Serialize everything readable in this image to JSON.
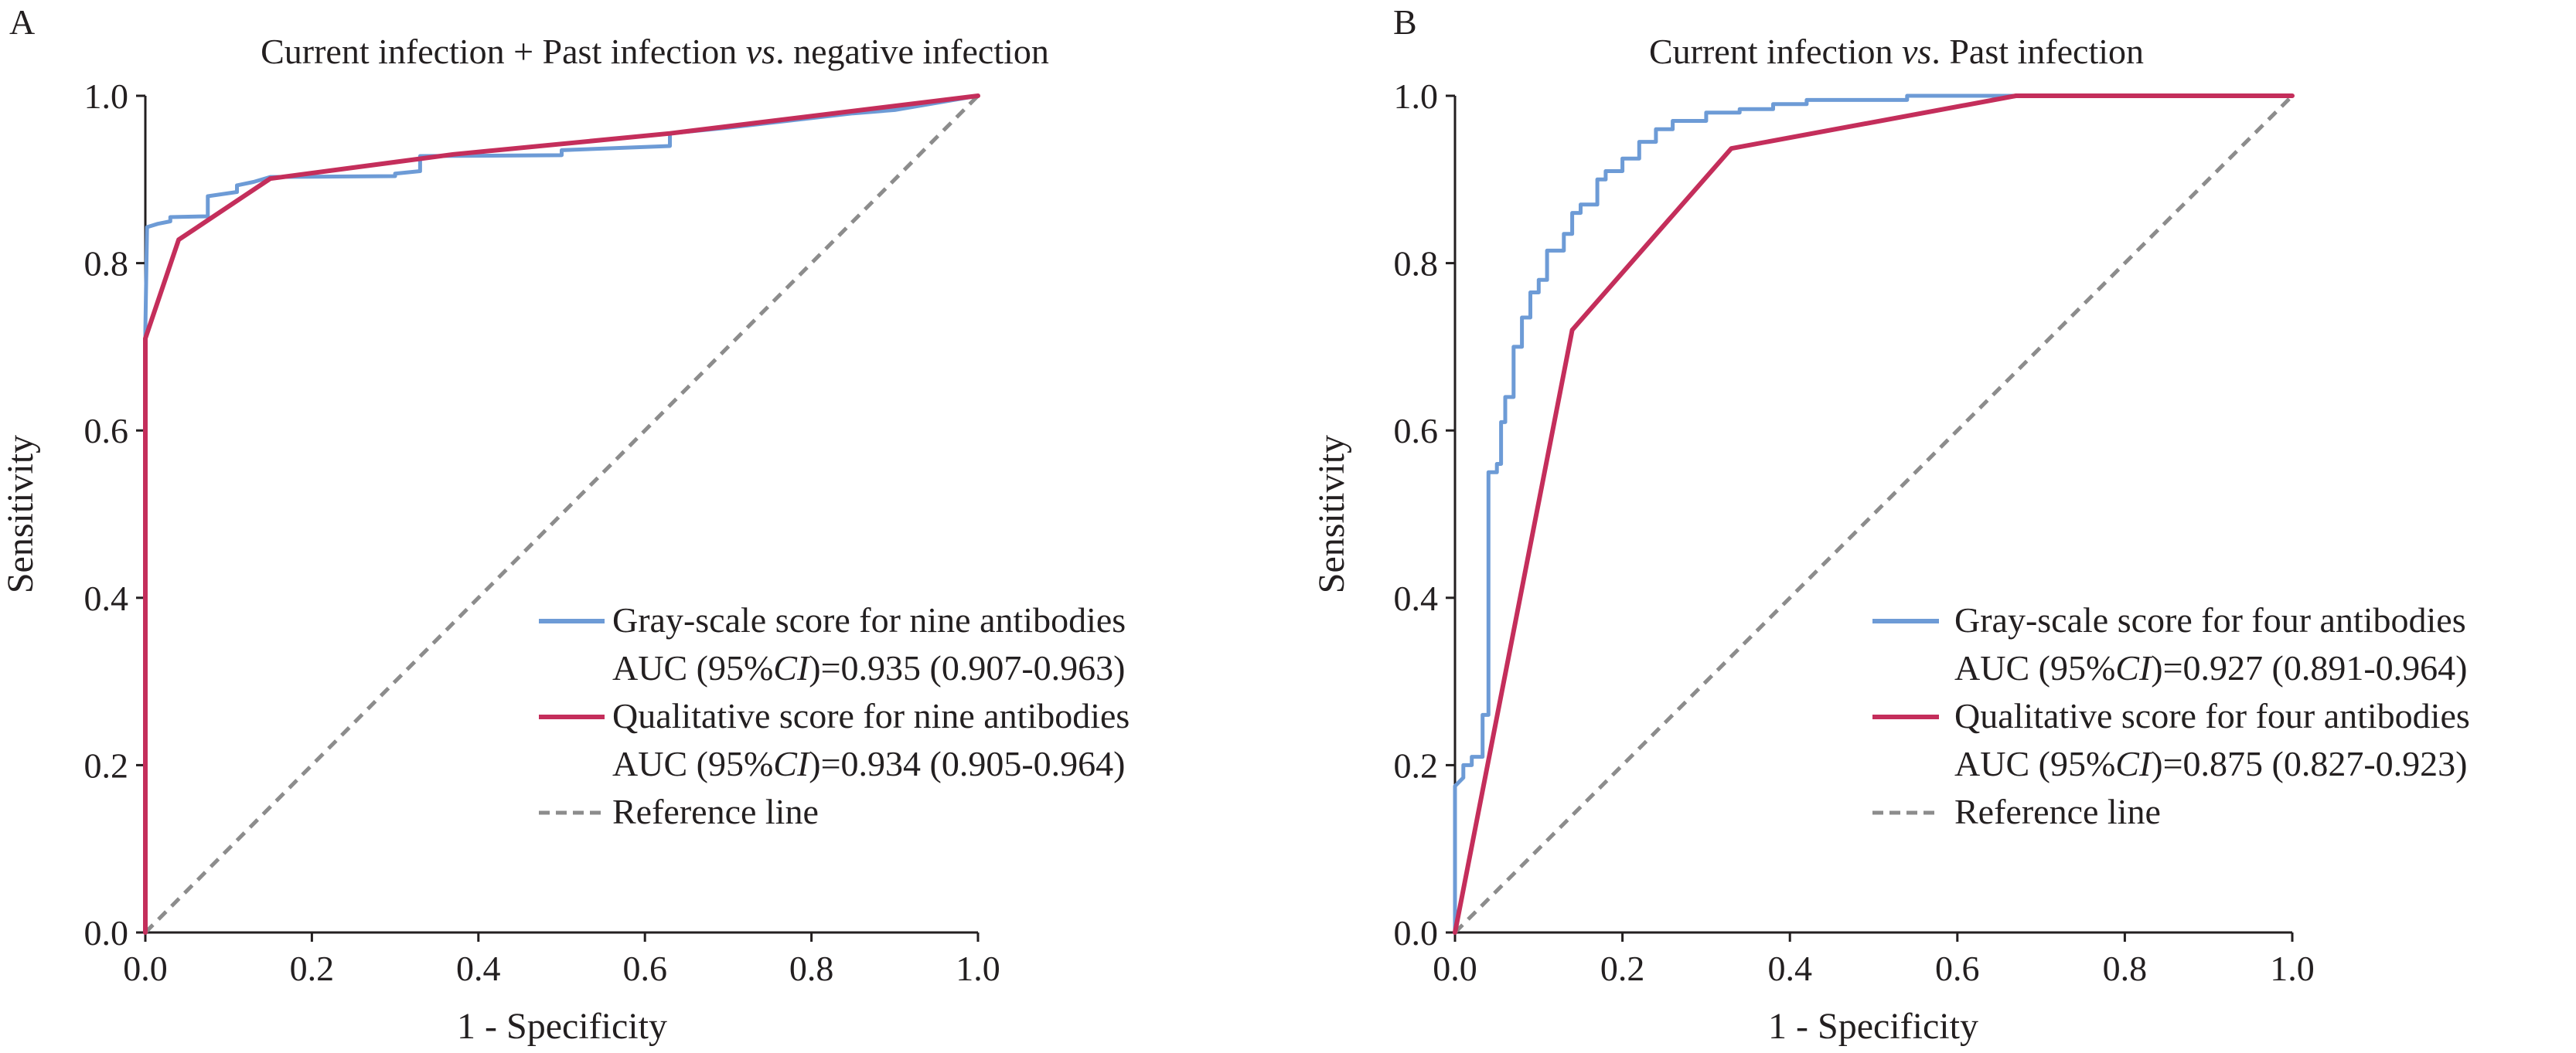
{
  "chart_data": [
    {
      "type": "line",
      "panel": "A",
      "title": "Current infection + Past infection vs. negative infection",
      "title_parts": [
        {
          "text": "Current infection + Past infection ",
          "italic": false
        },
        {
          "text": "vs",
          "italic": true
        },
        {
          "text": ". negative infection",
          "italic": false
        }
      ],
      "xlabel": "1 - Specificity",
      "ylabel": "Sensitivity",
      "xlim": [
        0,
        1
      ],
      "ylim": [
        0,
        1
      ],
      "xticks": [
        0.0,
        0.2,
        0.4,
        0.6,
        0.8,
        1.0
      ],
      "yticks": [
        0.0,
        0.2,
        0.4,
        0.6,
        0.8,
        1.0
      ],
      "tick_format": "0.0",
      "grid": false,
      "legend_position": "bottom-right",
      "series": [
        {
          "name": "Gray-scale score for nine antibodies",
          "auc_parts": [
            {
              "text": "AUC (95%",
              "italic": false
            },
            {
              "text": "CI",
              "italic": true
            },
            {
              "text": ")=0.935 (0.907-0.963)",
              "italic": false
            }
          ],
          "color": "#6d9bd6",
          "style": "solid",
          "x": [
            0,
            0,
            0.002,
            0.015,
            0.03,
            0.03,
            0.075,
            0.075,
            0.11,
            0.11,
            0.13,
            0.15,
            0.3,
            0.3,
            0.33,
            0.33,
            0.5,
            0.5,
            0.63,
            0.63,
            0.7,
            0.85,
            0.9,
            1.0
          ],
          "y": [
            0,
            0.72,
            0.843,
            0.847,
            0.85,
            0.855,
            0.856,
            0.88,
            0.885,
            0.893,
            0.897,
            0.903,
            0.904,
            0.907,
            0.91,
            0.928,
            0.929,
            0.935,
            0.94,
            0.955,
            0.962,
            0.979,
            0.983,
            1.0
          ]
        },
        {
          "name": "Qualitative score for nine antibodies",
          "auc_parts": [
            {
              "text": "AUC (95%",
              "italic": false
            },
            {
              "text": "CI",
              "italic": true
            },
            {
              "text": ")=0.934 (0.905-0.964)",
              "italic": false
            }
          ],
          "color": "#c42e5b",
          "style": "solid",
          "x": [
            0,
            0,
            0.04,
            0.15,
            0.37,
            0.63,
            1.0
          ],
          "y": [
            0,
            0.71,
            0.828,
            0.901,
            0.93,
            0.955,
            1.0
          ]
        },
        {
          "name": "Reference line",
          "color": "#8c8c8c",
          "style": "dashed",
          "x": [
            0,
            1
          ],
          "y": [
            0,
            1
          ]
        }
      ]
    },
    {
      "type": "line",
      "panel": "B",
      "title": "Current infection vs. Past infection",
      "title_parts": [
        {
          "text": "Current infection ",
          "italic": false
        },
        {
          "text": "vs",
          "italic": true
        },
        {
          "text": ". Past infection",
          "italic": false
        }
      ],
      "xlabel": "1 - Specificity",
      "ylabel": "Sensitivity",
      "xlim": [
        0,
        1
      ],
      "ylim": [
        0,
        1
      ],
      "xticks": [
        0.0,
        0.2,
        0.4,
        0.6,
        0.8,
        1.0
      ],
      "yticks": [
        0.0,
        0.2,
        0.4,
        0.6,
        0.8,
        1.0
      ],
      "tick_format": "0.0",
      "grid": false,
      "legend_position": "bottom-right",
      "series": [
        {
          "name": "Gray-scale score for four antibodies",
          "auc_parts": [
            {
              "text": "AUC (95%",
              "italic": false
            },
            {
              "text": "CI",
              "italic": true
            },
            {
              "text": ")=0.927 (0.891-0.964)",
              "italic": false
            }
          ],
          "color": "#6d9bd6",
          "style": "solid",
          "x": [
            0,
            0,
            0.01,
            0.01,
            0.02,
            0.02,
            0.033,
            0.033,
            0.04,
            0.04,
            0.05,
            0.05,
            0.055,
            0.055,
            0.06,
            0.06,
            0.07,
            0.07,
            0.08,
            0.08,
            0.09,
            0.09,
            0.1,
            0.1,
            0.11,
            0.11,
            0.13,
            0.13,
            0.14,
            0.14,
            0.15,
            0.15,
            0.17,
            0.17,
            0.18,
            0.18,
            0.2,
            0.2,
            0.22,
            0.22,
            0.24,
            0.24,
            0.26,
            0.26,
            0.3,
            0.3,
            0.34,
            0.34,
            0.38,
            0.38,
            0.42,
            0.42,
            0.54,
            0.54,
            0.7,
            1.0
          ],
          "y": [
            0,
            0.175,
            0.185,
            0.2,
            0.2,
            0.21,
            0.21,
            0.26,
            0.26,
            0.55,
            0.55,
            0.56,
            0.56,
            0.61,
            0.61,
            0.64,
            0.64,
            0.7,
            0.7,
            0.735,
            0.735,
            0.765,
            0.765,
            0.78,
            0.78,
            0.815,
            0.815,
            0.835,
            0.835,
            0.86,
            0.86,
            0.87,
            0.87,
            0.9,
            0.9,
            0.91,
            0.91,
            0.925,
            0.925,
            0.945,
            0.945,
            0.96,
            0.96,
            0.97,
            0.97,
            0.98,
            0.98,
            0.984,
            0.984,
            0.99,
            0.99,
            0.995,
            0.995,
            1.0,
            1.0,
            1.0
          ]
        },
        {
          "name": "Qualitative score for four antibodies",
          "auc_parts": [
            {
              "text": "AUC (95%",
              "italic": false
            },
            {
              "text": "CI",
              "italic": true
            },
            {
              "text": ")=0.875 (0.827-0.923)",
              "italic": false
            }
          ],
          "color": "#c42e5b",
          "style": "solid",
          "x": [
            0,
            0.14,
            0.33,
            0.67,
            1.0
          ],
          "y": [
            0,
            0.72,
            0.937,
            1.0,
            1.0
          ]
        },
        {
          "name": "Reference line",
          "color": "#8c8c8c",
          "style": "dashed",
          "x": [
            0,
            1
          ],
          "y": [
            0,
            1
          ]
        }
      ]
    }
  ]
}
